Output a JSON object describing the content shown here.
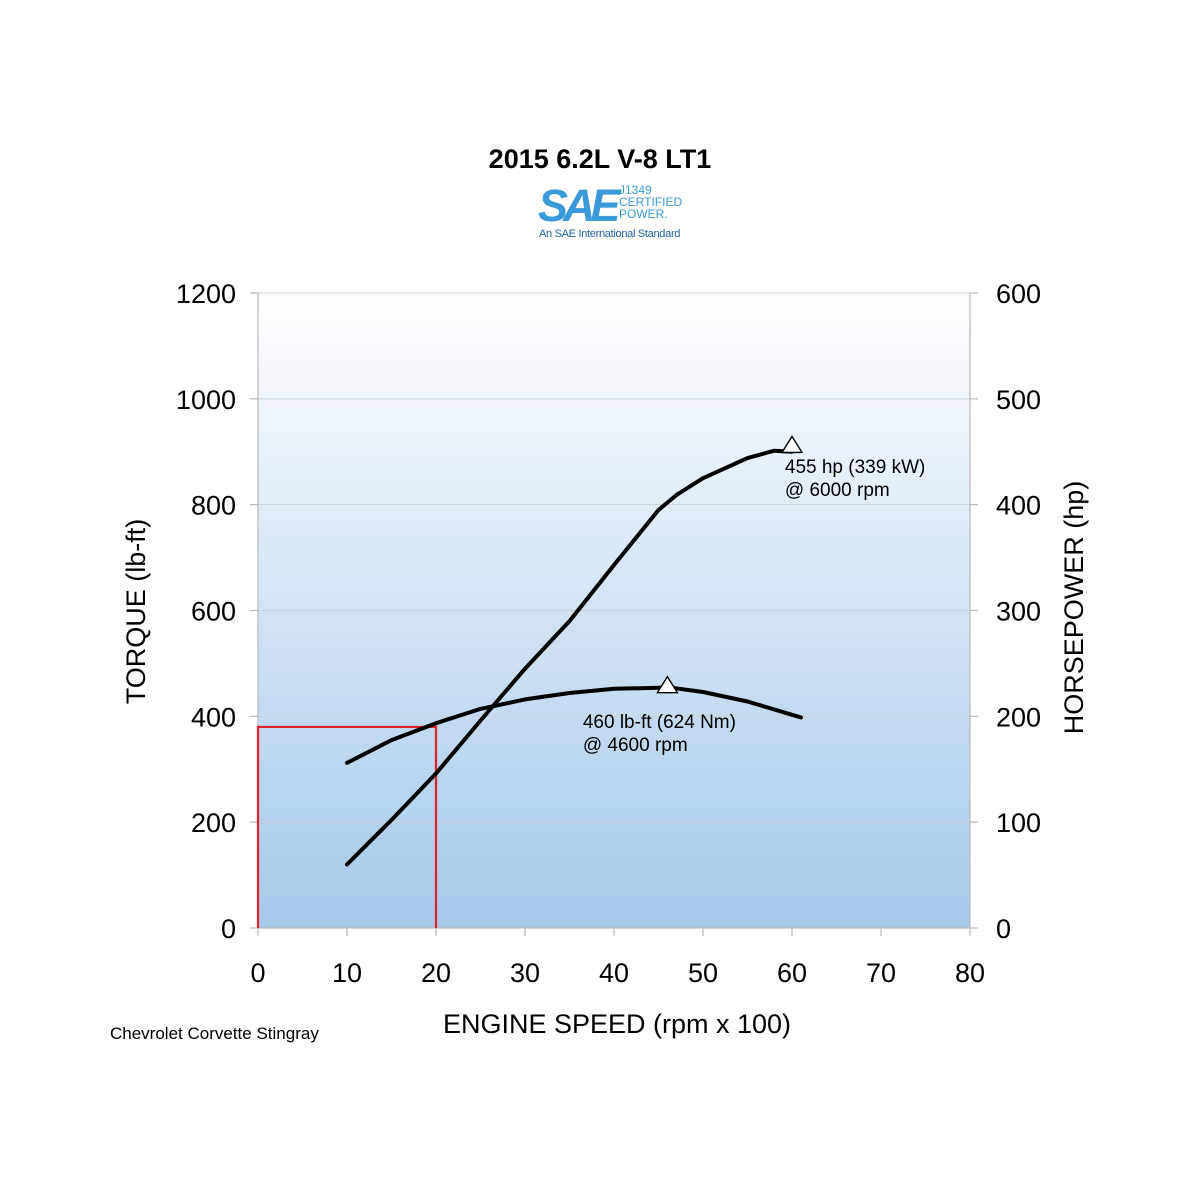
{
  "chart_data": {
    "type": "line",
    "title": "2015 6.2L V-8 LT1",
    "logo": {
      "mark": "SAE",
      "side_lines": [
        "J1349",
        "CERTIFIED",
        "POWER."
      ],
      "standard": "An SAE International Standard"
    },
    "xlabel": "ENGINE SPEED (rpm x 100)",
    "ylabel_left": "TORQUE (lb-ft)",
    "ylabel_right": "HORSEPOWER (hp)",
    "xlim": [
      0,
      80
    ],
    "ylim_left": [
      0,
      1200
    ],
    "ylim_right": [
      0,
      600
    ],
    "x_ticks": [
      "0",
      "10",
      "20",
      "30",
      "40",
      "50",
      "60",
      "70",
      "80"
    ],
    "y_ticks_left": [
      "0",
      "200",
      "400",
      "600",
      "800",
      "1000",
      "1200"
    ],
    "y_ticks_right": [
      "0",
      "100",
      "200",
      "300",
      "400",
      "500",
      "600"
    ],
    "grid": true,
    "background_colors": [
      "#ffffff",
      "#a5c9ea"
    ],
    "series": [
      {
        "axis": "left",
        "color": "#000000",
        "x": [
          10,
          15,
          20,
          25,
          30,
          35,
          40,
          45,
          46,
          50,
          55,
          61
        ],
        "y": [
          312,
          355,
          387,
          414,
          432,
          444,
          452,
          454,
          455,
          446,
          428,
          398
        ]
      },
      {
        "axis": "right",
        "color": "#000000",
        "x": [
          10,
          15,
          20,
          25,
          30,
          35,
          40,
          45,
          47,
          50,
          55,
          58,
          60
        ],
        "y": [
          60,
          102,
          146,
          196,
          245,
          290,
          343,
          395,
          409,
          425,
          444,
          451,
          450
        ]
      }
    ],
    "markers": [
      {
        "axis": "left",
        "x": 46,
        "y": 458
      },
      {
        "axis": "right",
        "x": 60,
        "y": 456
      }
    ],
    "annotations": [
      {
        "axis": "left",
        "x": 36.5,
        "y": 378,
        "lines": [
          "460 lb-ft (624 Nm)",
          "@ 4600 rpm"
        ]
      },
      {
        "axis": "right",
        "x": 59.2,
        "y": 430,
        "lines": [
          "455 hp (339 kW)",
          "@ 6000 rpm"
        ]
      }
    ],
    "highlight_box": {
      "axis": "left",
      "x": [
        0,
        20
      ],
      "y": [
        0,
        380
      ],
      "color": "#e0202a"
    }
  },
  "footnote": "Chevrolet Corvette Stingray"
}
